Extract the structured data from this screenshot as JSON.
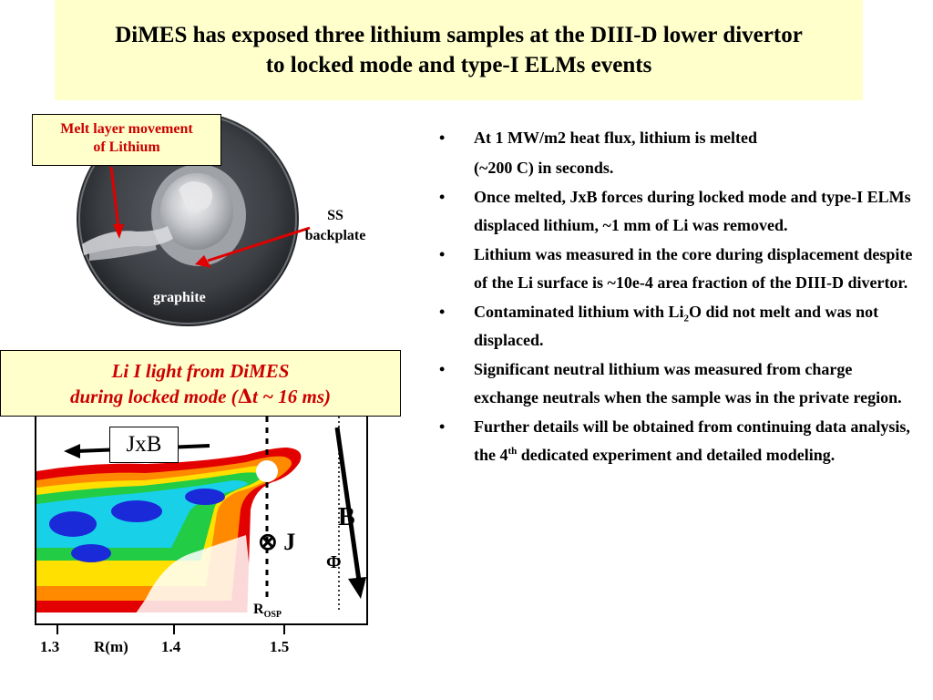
{
  "title": {
    "line1": "DiMES has exposed three lithium samples at the DIII-D lower divertor",
    "line2": "to locked mode and type-I ELMs events"
  },
  "photo": {
    "callout_line1": "Melt layer movement",
    "callout_line2": "of Lithium",
    "ss_line1": "SS",
    "ss_line2": "backplate",
    "graphite": "graphite"
  },
  "li_box": {
    "line1": "Li I light from DiMES",
    "line2_pre": "during locked mode (",
    "line2_delta": "Δ",
    "line2_post": "t  ~ 16 ms)"
  },
  "plot": {
    "jxb": "JxB",
    "b": "B",
    "j": "⊗ J",
    "phi": "Φ",
    "rosp_main": "R",
    "rosp_sub": "OSP",
    "x_ticks": [
      "1.3",
      "1.4",
      "1.5"
    ],
    "x_axis_label": "R(m)"
  },
  "bullets": [
    {
      "text": "At 1 MW/m2 heat flux, lithium is melted"
    },
    {
      "text": "(~200 C) in seconds.",
      "continuation": true
    },
    {
      "text": "Once melted, JxB forces during locked mode and type-I ELMs displaced lithium, ~1 mm of Li was removed."
    },
    {
      "text": "Lithium was measured in the core during displacement despite of the Li surface is ~10e-4 area fraction of the DIII-D divertor."
    },
    {
      "pre": "Contaminated lithium with Li",
      "sub": "2",
      "post": "O did not melt and was not displaced."
    },
    {
      "text": "Significant neutral lithium was measured from charge exchange neutrals when the sample was in the private region."
    },
    {
      "pre": "Further details will be obtained from continuing data analysis, the 4",
      "sup": "th",
      "post": " dedicated experiment and detailed modeling."
    }
  ],
  "colors": {
    "title_bg": "#ffffcc",
    "callout_text": "#cc0000",
    "arrow": "#e00000"
  }
}
